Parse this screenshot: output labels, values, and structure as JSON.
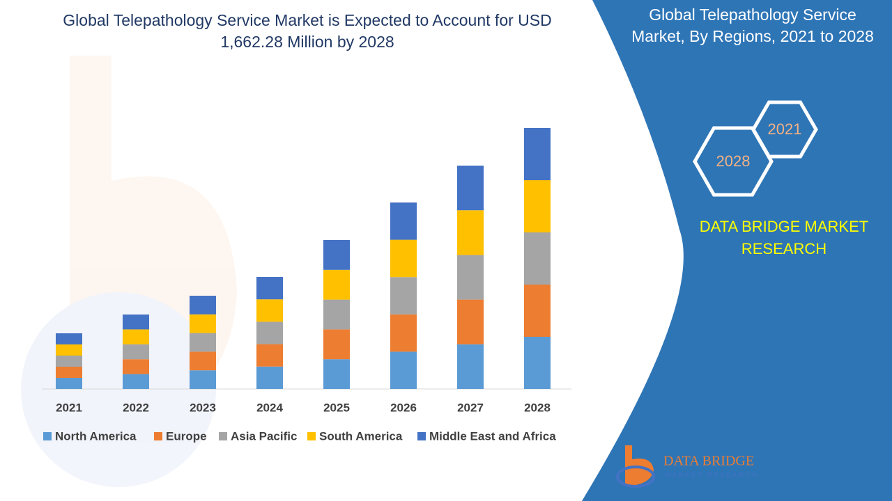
{
  "chart_data": {
    "type": "stacked_bar",
    "title": "Global Telepathology Service Market is Expected to Account for USD 1,662.28 Million by 2028",
    "categories": [
      "2021",
      "2022",
      "2023",
      "2024",
      "2025",
      "2026",
      "2027",
      "2028"
    ],
    "series": [
      {
        "name": "North America",
        "color": "#5b9bd5",
        "values": [
          16,
          21.4,
          26.8,
          32.2,
          42.8,
          53.6,
          64.2,
          75
        ]
      },
      {
        "name": "Europe",
        "color": "#ed7d31",
        "values": [
          16,
          21.4,
          26.8,
          32.2,
          42.8,
          53.6,
          64.2,
          75
        ]
      },
      {
        "name": "Asia Pacific",
        "color": "#a5a5a5",
        "values": [
          16,
          21.4,
          26.8,
          32.2,
          42.8,
          53.6,
          64.2,
          75
        ]
      },
      {
        "name": "South America",
        "color": "#ffc000",
        "values": [
          16,
          21.4,
          26.8,
          32.2,
          42.8,
          53.6,
          64.2,
          75
        ]
      },
      {
        "name": "Middle East and Africa",
        "color": "#4472c4",
        "values": [
          16,
          21.4,
          26.8,
          32.2,
          42.8,
          53.6,
          64.2,
          75
        ]
      }
    ],
    "legend": "bottom"
  },
  "panel": {
    "title": "Global Telepathology Service Market, By Regions, 2021 to 2028",
    "hexagons": [
      "2021",
      "2028"
    ],
    "brand": "DATA BRIDGE MARKET RESEARCH",
    "logo_title": "DATA BRIDGE",
    "logo_subtitle": "MARKET RESEARCH"
  }
}
